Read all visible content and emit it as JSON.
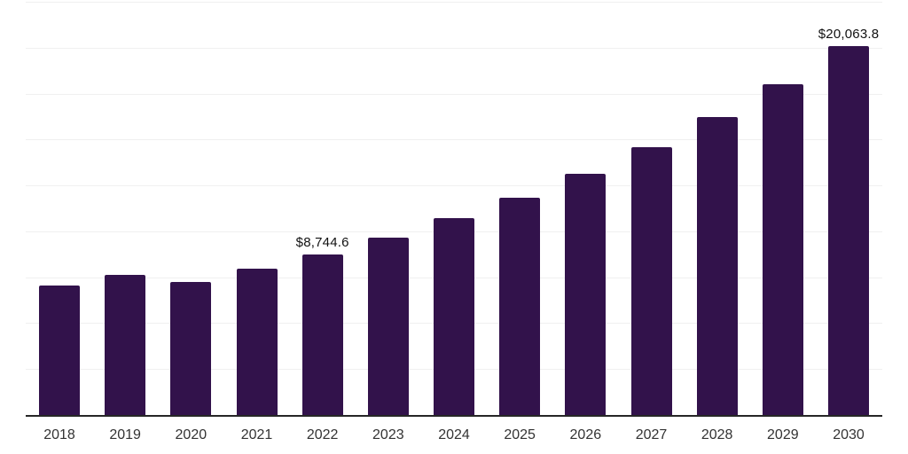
{
  "chart_data": {
    "type": "bar",
    "title": "",
    "xlabel": "",
    "ylabel": "",
    "categories": [
      "2018",
      "2019",
      "2020",
      "2021",
      "2022",
      "2023",
      "2024",
      "2025",
      "2026",
      "2027",
      "2028",
      "2029",
      "2030"
    ],
    "values": [
      7050,
      7650,
      7250,
      7980,
      8744.6,
      9650,
      10700,
      11850,
      13150,
      14600,
      16220,
      18030,
      20063.8
    ],
    "value_labels": [
      "",
      "",
      "",
      "",
      "$8,744.6",
      "",
      "",
      "",
      "",
      "",
      "",
      "",
      "$20,063.8"
    ],
    "labeled_points": [
      {
        "category": "2022",
        "label": "$8,744.6",
        "value": 8744.6
      },
      {
        "category": "2030",
        "label": "$20,063.8",
        "value": 20063.8
      }
    ],
    "ylim": [
      0,
      22500
    ],
    "gridline_step": 2500,
    "grid": true,
    "y_axis_labels_visible": false,
    "legend_position": "none",
    "colors": {
      "bar": "#32124b",
      "axis_line": "#262626",
      "gridline": "#f0f0f0",
      "value_label": "#111111",
      "tick_label": "#333333",
      "background": "#ffffff"
    }
  }
}
